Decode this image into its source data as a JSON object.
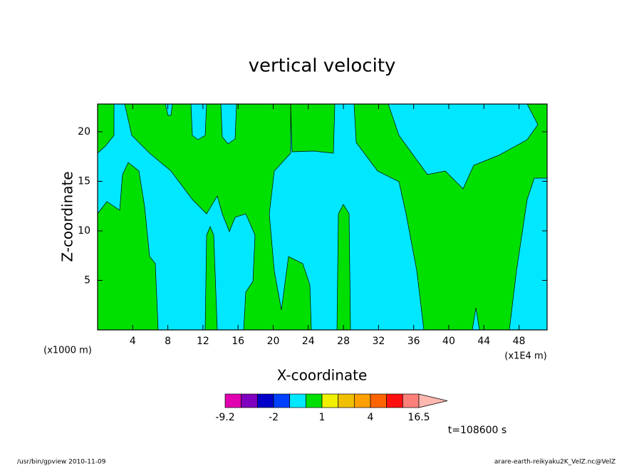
{
  "chart_data": {
    "type": "contour",
    "title": "vertical velocity",
    "xlabel": "X-coordinate",
    "ylabel": "Z-coordinate",
    "x_unit_label": "(x1000 m)",
    "x_scale_label": "(x1E4 m)",
    "xlim": [
      0,
      51.2
    ],
    "ylim": [
      0,
      22.8
    ],
    "xticks": [
      4,
      8,
      12,
      16,
      20,
      24,
      28,
      32,
      36,
      40,
      44,
      48
    ],
    "yticks": [
      5,
      10,
      15,
      20
    ],
    "colorbar": {
      "levels": [
        -9.2,
        -6,
        -3,
        -2,
        -1,
        0,
        1,
        2,
        3,
        4,
        8,
        12,
        16.5
      ],
      "colors": [
        "#e000b0",
        "#8000c0",
        "#0000c8",
        "#0040ff",
        "#00e8ff",
        "#00e000",
        "#f0f000",
        "#f0c000",
        "#ffa000",
        "#ff6400",
        "#ff1010",
        "#ff8078",
        "#ffb8b0"
      ],
      "ticks": [
        -9.2,
        -2,
        1,
        4,
        16.5
      ]
    },
    "annotation": "t=108600 s",
    "footer_left": "/usr/bin/gpview   2010-11-09",
    "footer_right": "arare-earth-reikyaku2K_VelZ.nc@VelZ"
  }
}
